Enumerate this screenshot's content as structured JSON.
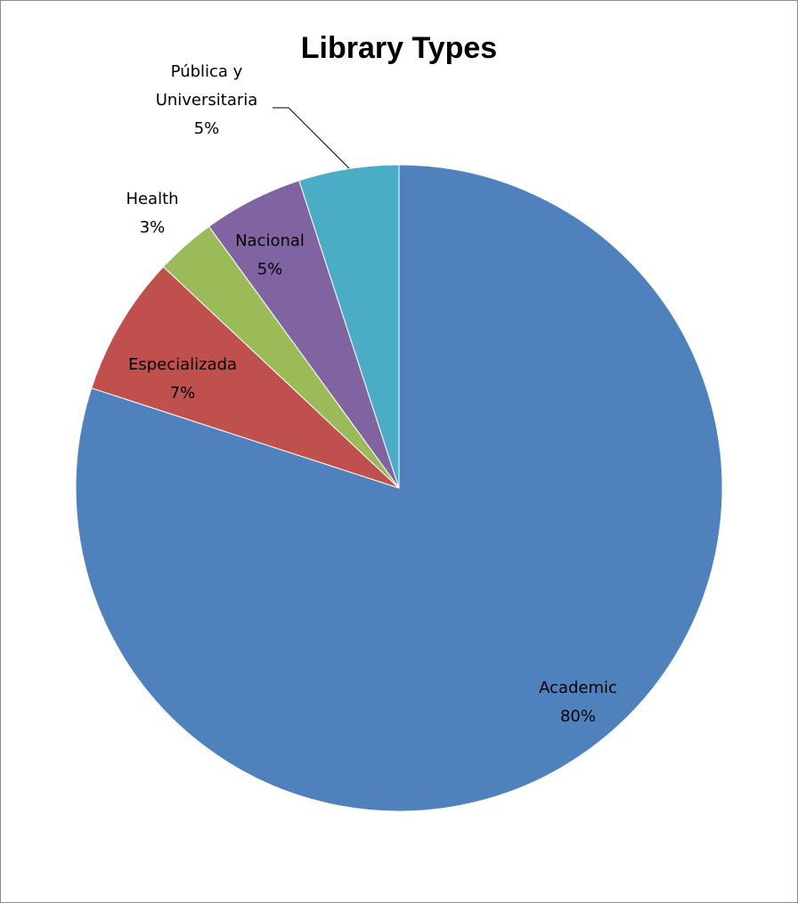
{
  "chart_data": {
    "type": "pie",
    "title": "Library Types",
    "categories": [
      "Academic",
      "Especializada",
      "Health",
      "Nacional",
      "Pública y Universitaria"
    ],
    "values": [
      80,
      7,
      3,
      5,
      5
    ],
    "data_labels": [
      {
        "name": "Academic",
        "percent": "80%"
      },
      {
        "name": "Especializada",
        "percent": "7%"
      },
      {
        "name": "Health",
        "percent": "3%"
      },
      {
        "name": "Nacional",
        "percent": "5%"
      },
      {
        "name_lines": [
          "Pública y",
          "Universitaria"
        ],
        "percent": "5%"
      }
    ],
    "colors": [
      "#4F81BD",
      "#C0504D",
      "#9BBB59",
      "#8064A2",
      "#4BACC6"
    ],
    "legend": "none",
    "start_angle": "12 o'clock",
    "direction": "clockwise"
  }
}
